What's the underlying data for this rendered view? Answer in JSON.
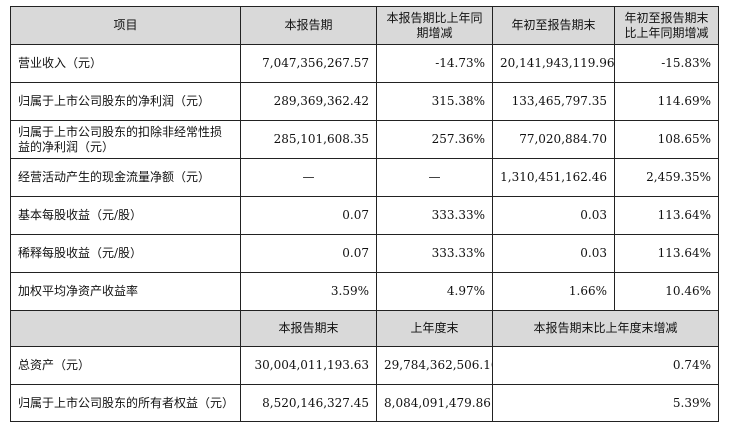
{
  "header": {
    "item": "项目",
    "current_period": "本报告期",
    "current_change": "本报告期比上年同期增减",
    "ytd": "年初至报告期末",
    "ytd_change": "年初至报告期末比上年同期增减"
  },
  "rows": [
    {
      "label": "营业收入（元）",
      "current": "7,047,356,267.57",
      "current_change": "-14.73%",
      "ytd": "20,141,943,119.96",
      "ytd_change": "-15.83%"
    },
    {
      "label": "归属于上市公司股东的净利润（元）",
      "current": "289,369,362.42",
      "current_change": "315.38%",
      "ytd": "133,465,797.35",
      "ytd_change": "114.69%"
    },
    {
      "label": "归属于上市公司股东的扣除非经常性损益的净利润（元）",
      "current": "285,101,608.35",
      "current_change": "257.36%",
      "ytd": "77,020,884.70",
      "ytd_change": "108.65%"
    },
    {
      "label": "经营活动产生的现金流量净额（元）",
      "current": "—",
      "current_change": "—",
      "ytd": "1,310,451,162.46",
      "ytd_change": "2,459.35%"
    },
    {
      "label": "基本每股收益（元/股）",
      "current": "0.07",
      "current_change": "333.33%",
      "ytd": "0.03",
      "ytd_change": "113.64%"
    },
    {
      "label": "稀释每股收益（元/股）",
      "current": "0.07",
      "current_change": "333.33%",
      "ytd": "0.03",
      "ytd_change": "113.64%"
    },
    {
      "label": "加权平均净资产收益率",
      "current": "3.59%",
      "current_change": "4.97%",
      "ytd": "1.66%",
      "ytd_change": "10.46%"
    }
  ],
  "header2": {
    "period_end": "本报告期末",
    "prior_year_end": "上年度末",
    "change": "本报告期末比上年度末增减"
  },
  "rows2": [
    {
      "label": "总资产（元）",
      "period_end": "30,004,011,193.63",
      "prior_year_end": "29,784,362,506.10",
      "change": "0.74%"
    },
    {
      "label": "归属于上市公司股东的所有者权益（元）",
      "period_end": "8,520,146,327.45",
      "prior_year_end": "8,084,091,479.86",
      "change": "5.39%"
    }
  ]
}
